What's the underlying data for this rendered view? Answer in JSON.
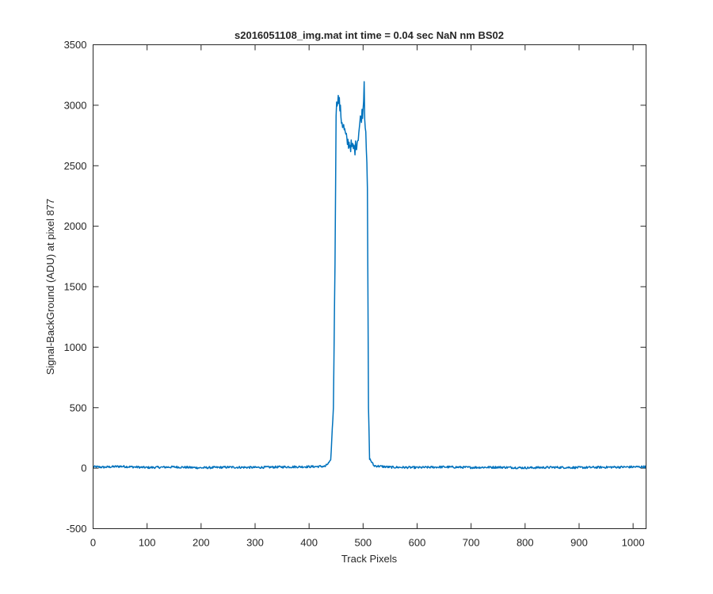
{
  "chart_data": {
    "type": "line",
    "title": "s2016051108_img.mat int time = 0.04 sec  NaN nm BS02",
    "xlabel": "Track Pixels",
    "ylabel": "Signal-BackGround (ADU) at pixel 877",
    "xlim": [
      0,
      1024
    ],
    "ylim": [
      -500,
      3500
    ],
    "xticks": [
      0,
      100,
      200,
      300,
      400,
      500,
      600,
      700,
      800,
      900,
      1000
    ],
    "yticks": [
      -500,
      0,
      500,
      1000,
      1500,
      2000,
      2500,
      3000,
      3500
    ],
    "grid": false,
    "line_color": "#0072BD",
    "series": [
      {
        "x": [
          0,
          20,
          50,
          100,
          150,
          200,
          250,
          300,
          350,
          400,
          430,
          440,
          445,
          448,
          450,
          453,
          456,
          460,
          465,
          470,
          475,
          480,
          485,
          490,
          495,
          500,
          502,
          503,
          505,
          508,
          510,
          512,
          520,
          550,
          600,
          650,
          700,
          750,
          800,
          850,
          900,
          950,
          1000,
          1024
        ],
        "y": [
          12,
          8,
          15,
          5,
          10,
          3,
          8,
          6,
          10,
          12,
          15,
          60,
          500,
          1700,
          2950,
          3070,
          3020,
          2880,
          2800,
          2700,
          2680,
          2650,
          2640,
          2720,
          2880,
          2960,
          3210,
          2900,
          2820,
          2300,
          500,
          80,
          20,
          8,
          5,
          10,
          6,
          8,
          3,
          7,
          5,
          8,
          10,
          12
        ]
      }
    ]
  }
}
